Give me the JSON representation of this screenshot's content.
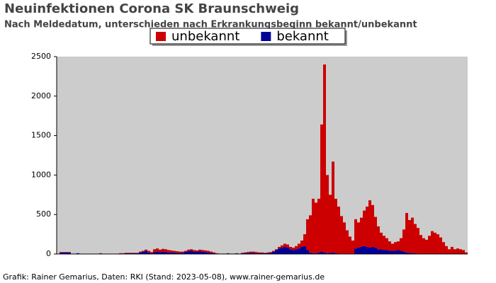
{
  "chart_data": {
    "type": "bar",
    "stacked": true,
    "title": "Neuinfektionen Corona SK Braunschweig",
    "subtitle": "Nach Meldedatum, unterschieden nach Erkrankungsbeginn bekannt/unbekannt",
    "source": "Grafik: Rainer Gemarius, Daten: RKI (Stand: 2023-05-08), www.rainer-gemarius.de",
    "categories": [
      null,
      null,
      null,
      null,
      null,
      null,
      null,
      null,
      null,
      null,
      null,
      null,
      null,
      null,
      null,
      null,
      null,
      null,
      null,
      null,
      null,
      null,
      null,
      null,
      null,
      null,
      null,
      null,
      null,
      null,
      null,
      null,
      null,
      null,
      null,
      null,
      null,
      null,
      null,
      null,
      null,
      null,
      null,
      null,
      null,
      null,
      null,
      null,
      null,
      null,
      null,
      null,
      null,
      null,
      null,
      null,
      null,
      null,
      null,
      null,
      null,
      null,
      null,
      null,
      null,
      null,
      null,
      null,
      null,
      null,
      null,
      null,
      null,
      null,
      null,
      null,
      null,
      null,
      null,
      null,
      null,
      null,
      null,
      null,
      null,
      null,
      null,
      null,
      null,
      null,
      null,
      null,
      null,
      null,
      null,
      null,
      null,
      null,
      null,
      null,
      null,
      null,
      null,
      null,
      null,
      null,
      null,
      null,
      null,
      null,
      null,
      null,
      null,
      null,
      null,
      null,
      null,
      null,
      null,
      null,
      null,
      null,
      null,
      null,
      null,
      null,
      null,
      null,
      null,
      null,
      null,
      null,
      null,
      null,
      null,
      null,
      null,
      null,
      null,
      null,
      null,
      null,
      null,
      null,
      null
    ],
    "series": [
      {
        "name": "bekannt",
        "color": "#000099",
        "values": [
          0,
          20,
          20,
          20,
          20,
          2,
          5,
          10,
          2,
          2,
          2,
          2,
          2,
          2,
          2,
          5,
          2,
          2,
          2,
          2,
          2,
          2,
          5,
          5,
          10,
          10,
          10,
          10,
          10,
          20,
          30,
          40,
          20,
          10,
          25,
          30,
          25,
          30,
          25,
          20,
          20,
          20,
          15,
          15,
          15,
          30,
          35,
          40,
          30,
          30,
          35,
          30,
          25,
          20,
          15,
          10,
          5,
          3,
          5,
          5,
          8,
          5,
          5,
          8,
          5,
          10,
          10,
          15,
          15,
          15,
          10,
          10,
          10,
          10,
          10,
          15,
          30,
          50,
          70,
          80,
          90,
          80,
          60,
          50,
          60,
          70,
          90,
          100,
          50,
          20,
          10,
          10,
          20,
          30,
          20,
          10,
          15,
          20,
          10,
          5,
          5,
          5,
          5,
          5,
          5,
          70,
          80,
          90,
          100,
          90,
          80,
          90,
          80,
          60,
          60,
          50,
          50,
          40,
          40,
          40,
          50,
          40,
          30,
          20,
          15,
          10,
          10,
          5,
          0,
          0,
          0,
          0,
          0,
          0,
          0,
          0,
          0,
          0,
          0,
          0,
          0,
          0,
          0,
          0,
          0
        ]
      },
      {
        "name": "unbekannt",
        "color": "#cc0000",
        "values": [
          0,
          5,
          5,
          5,
          5,
          0,
          0,
          0,
          0,
          0,
          0,
          0,
          0,
          0,
          0,
          5,
          0,
          0,
          0,
          0,
          0,
          0,
          5,
          5,
          5,
          5,
          5,
          5,
          5,
          10,
          10,
          15,
          20,
          15,
          35,
          40,
          30,
          35,
          35,
          30,
          25,
          20,
          20,
          15,
          15,
          10,
          20,
          20,
          20,
          15,
          20,
          20,
          20,
          20,
          15,
          10,
          5,
          2,
          0,
          0,
          2,
          0,
          0,
          2,
          0,
          5,
          10,
          10,
          15,
          15,
          15,
          10,
          10,
          5,
          10,
          10,
          10,
          10,
          20,
          30,
          40,
          40,
          30,
          30,
          40,
          60,
          80,
          150,
          390,
          470,
          690,
          640,
          680,
          1610,
          2380,
          990,
          735,
          1150,
          690,
          595,
          475,
          395,
          295,
          215,
          165,
          370,
          320,
          370,
          450,
          510,
          600,
          530,
          390,
          290,
          210,
          180,
          150,
          120,
          90,
          110,
          110,
          160,
          280,
          500,
          415,
          450,
          370,
          325,
          240,
          200,
          180,
          230,
          290,
          270,
          250,
          210,
          150,
          100,
          60,
          90,
          60,
          70,
          60,
          50,
          20
        ]
      }
    ],
    "legend": [
      "unbekannt",
      "bekannt"
    ],
    "ylim": [
      0,
      2500
    ],
    "yticks": [
      0,
      500,
      1000,
      1500,
      2000,
      2500
    ],
    "plot_background": "#cccccc"
  }
}
